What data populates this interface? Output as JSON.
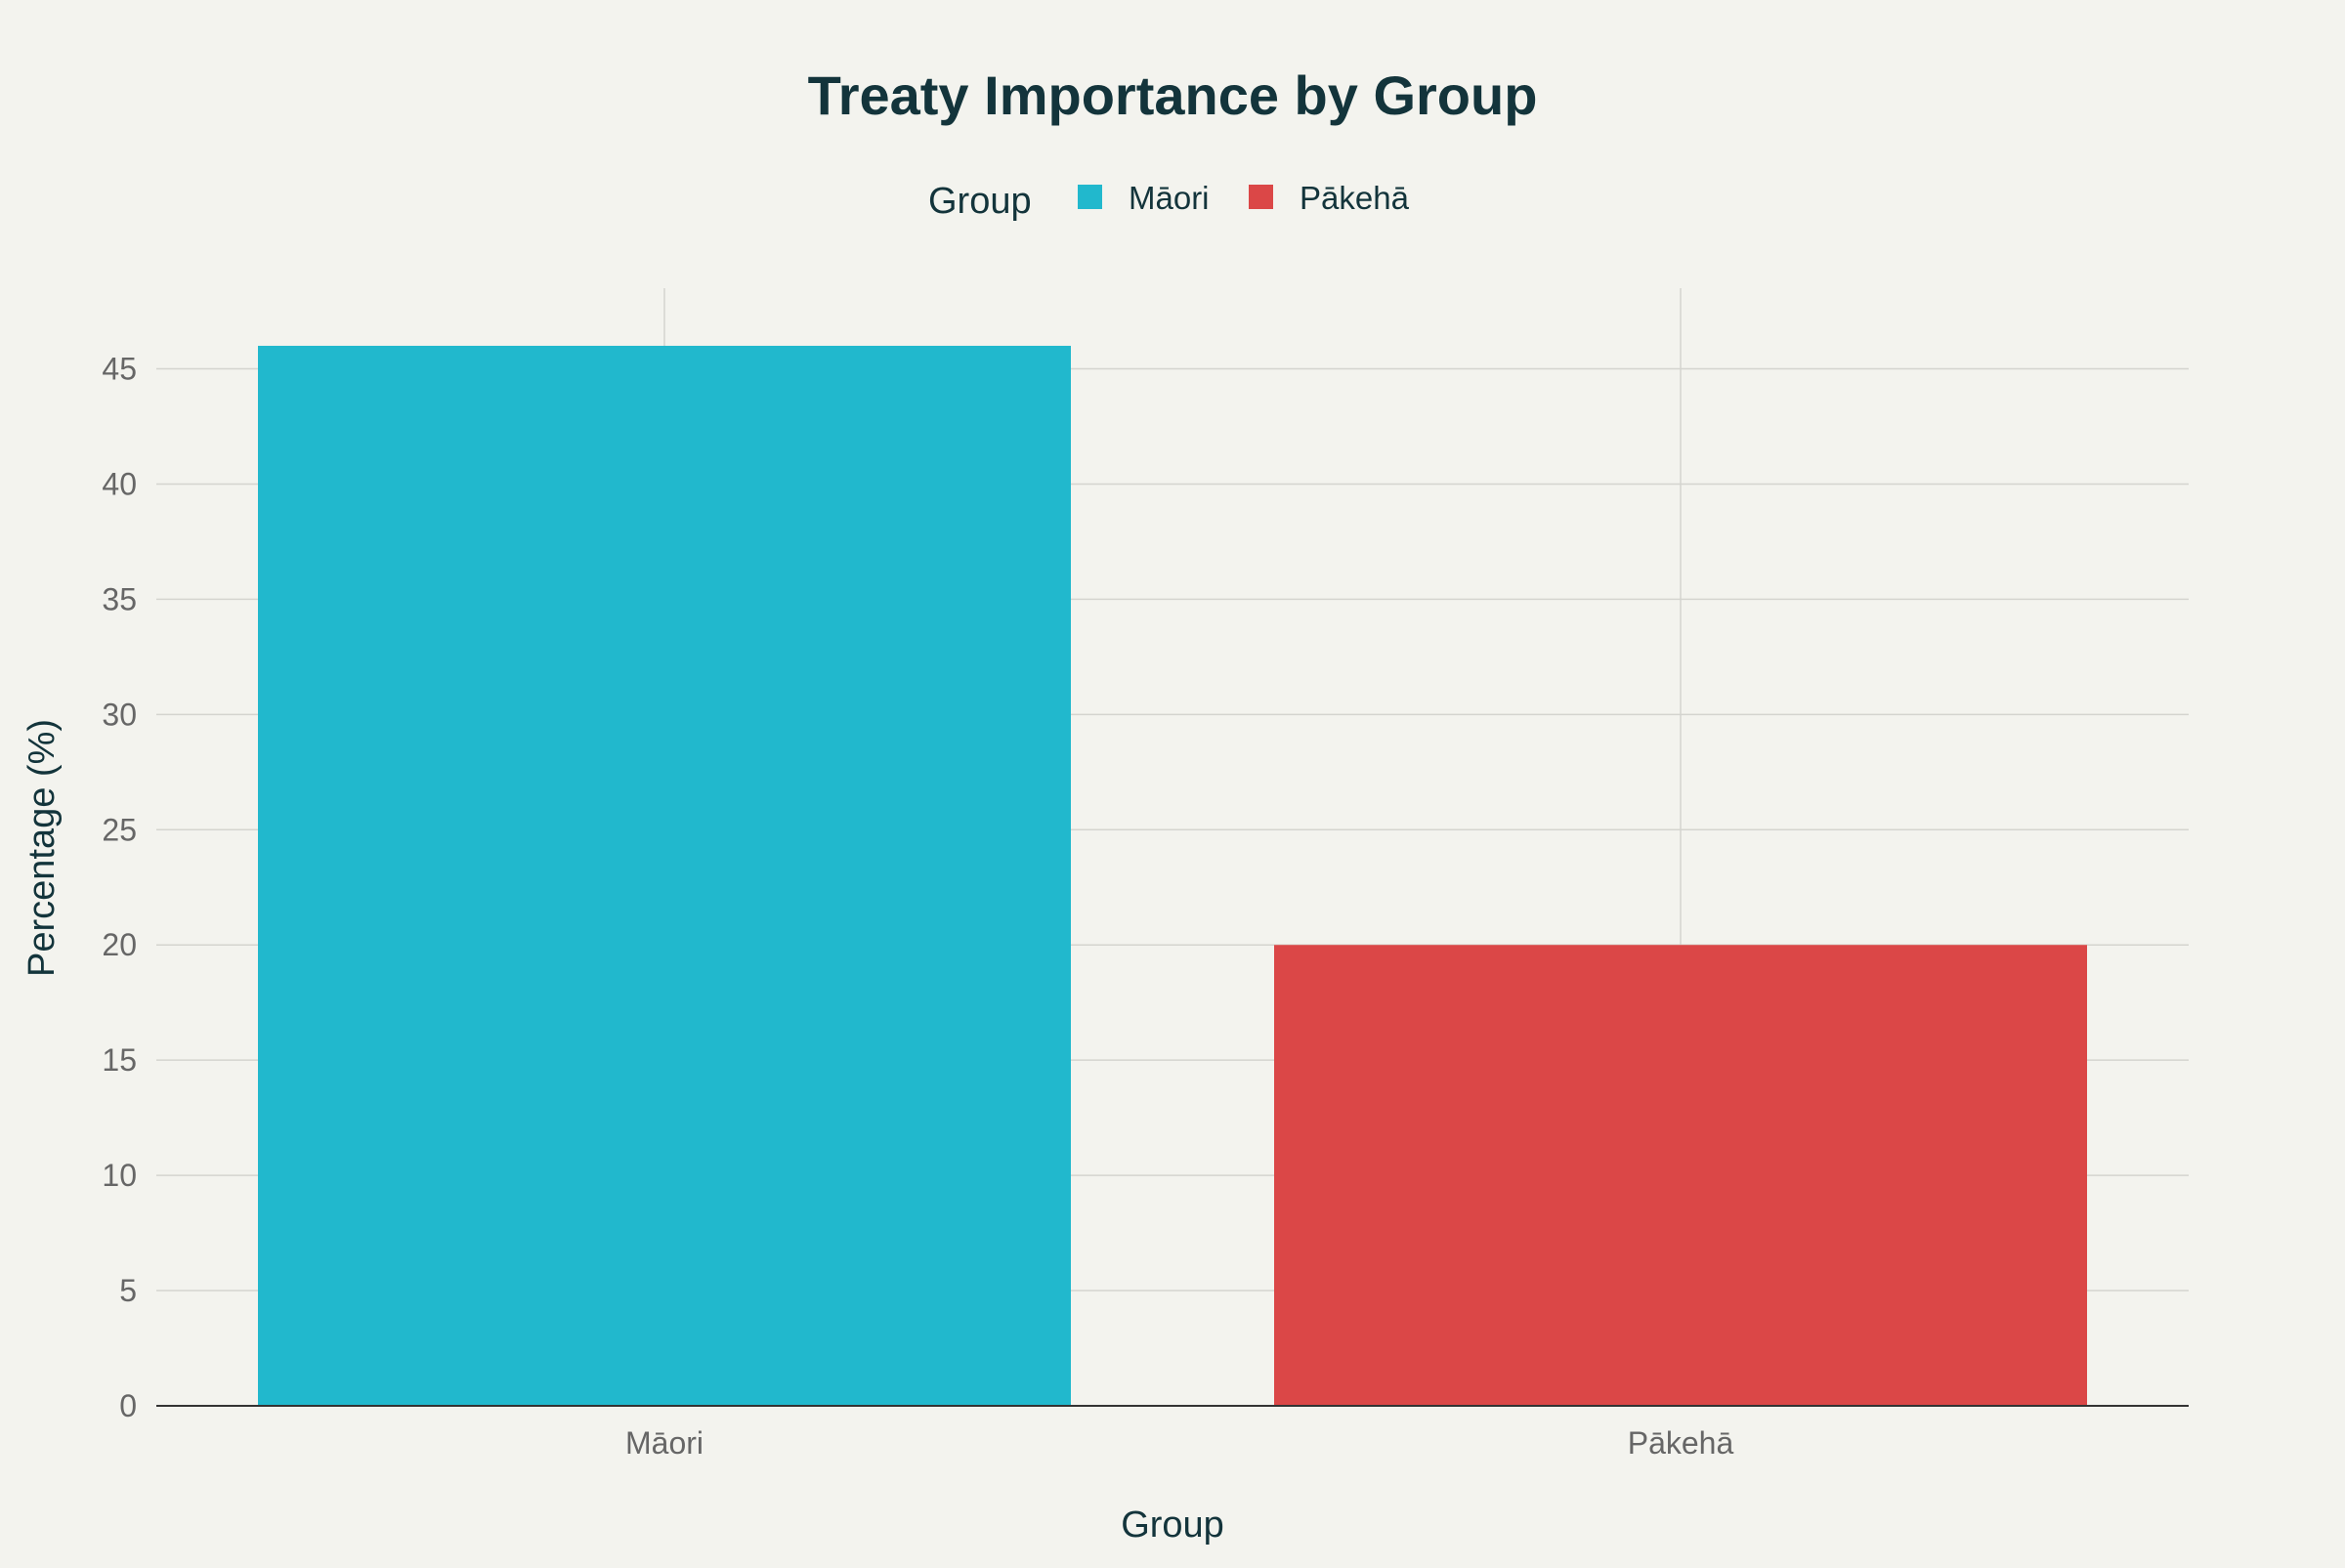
{
  "chart_data": {
    "type": "bar",
    "title": "Treaty Importance by Group",
    "xlabel": "Group",
    "ylabel": "Percentage (%)",
    "categories": [
      "Māori",
      "Pākehā"
    ],
    "values": [
      46,
      20
    ],
    "colors": [
      "#21b8cd",
      "#db4747"
    ],
    "ylim": [
      0,
      48.5
    ],
    "yticks": [
      0,
      5,
      10,
      15,
      20,
      25,
      30,
      35,
      40,
      45
    ],
    "grid": true,
    "legend": {
      "title": "Group",
      "placement": "top-center",
      "entries": [
        {
          "label": "Māori",
          "color": "#21b8cd"
        },
        {
          "label": "Pākehā",
          "color": "#db4747"
        }
      ]
    }
  }
}
